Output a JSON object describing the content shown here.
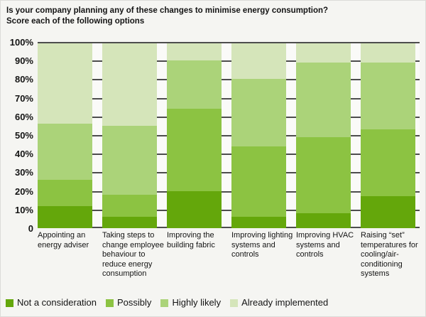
{
  "title": {
    "line1": "Is your company planning any of these changes to minimise energy consumption?",
    "line2": "Score each of the following options"
  },
  "chart_data": {
    "type": "bar",
    "stacked": true,
    "unit": "%",
    "title": "Is your company planning any of these changes to minimise energy consumption? Score each of the following options",
    "categories": [
      "Appointing an energy adviser",
      "Taking steps to change employee behaviour to reduce energy consumption",
      "Improving the building fabric",
      "Improving lighting systems and controls",
      "Improving HVAC systems and controls",
      "Raising “set” temperatures for cooling/air-conditioning systems"
    ],
    "series": [
      {
        "name": "Not a consideration",
        "color": "#64a70b",
        "values": [
          12,
          6,
          20,
          6,
          8,
          17
        ]
      },
      {
        "name": "Possibly",
        "color": "#8cc342",
        "values": [
          14,
          12,
          44,
          38,
          41,
          36
        ]
      },
      {
        "name": "Highly likely",
        "color": "#abd379",
        "values": [
          30,
          37,
          26,
          36,
          40,
          36
        ]
      },
      {
        "name": "Already implemented",
        "color": "#d5e5ba",
        "values": [
          44,
          45,
          10,
          20,
          11,
          11
        ]
      }
    ],
    "ylim": [
      0,
      100
    ],
    "yticks": [
      "100%",
      "90%",
      "80%",
      "70%",
      "60%",
      "50%",
      "40%",
      "30%",
      "20%",
      "10%",
      "0"
    ],
    "grid": true,
    "gridline_color": "#4d4d4d",
    "legend_position": "bottom",
    "xlabel": "",
    "ylabel": ""
  }
}
